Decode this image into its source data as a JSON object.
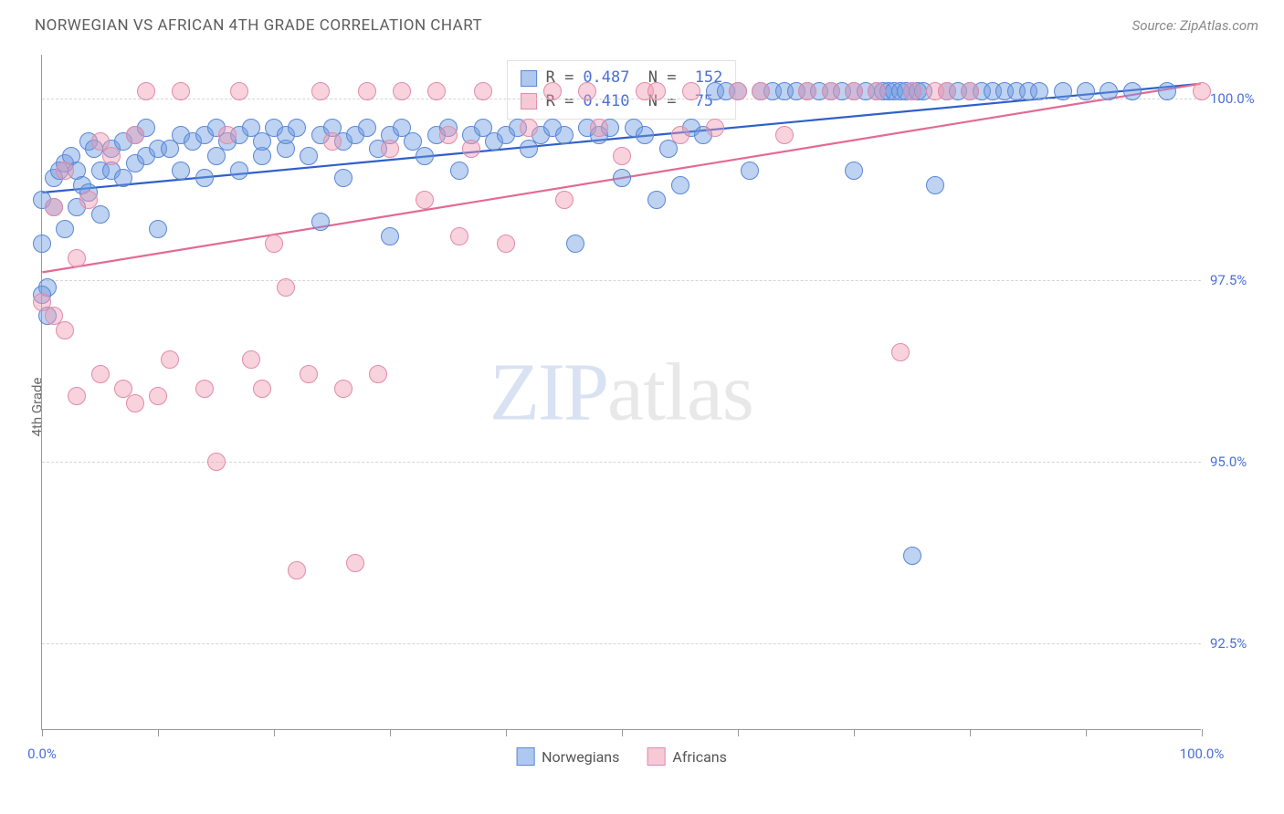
{
  "title": "NORWEGIAN VS AFRICAN 4TH GRADE CORRELATION CHART",
  "source": "Source: ZipAtlas.com",
  "y_axis_label": "4th Grade",
  "watermark": {
    "zip": "ZIP",
    "atlas": "atlas"
  },
  "chart": {
    "type": "scatter",
    "background_color": "#ffffff",
    "grid_color": "#d5d5d5",
    "axis_color": "#999999",
    "xlim": [
      0,
      100
    ],
    "ylim": [
      91.3,
      100.6
    ],
    "yticks": [
      {
        "v": 92.5,
        "label": "92.5%"
      },
      {
        "v": 95.0,
        "label": "95.0%"
      },
      {
        "v": 97.5,
        "label": "97.5%"
      },
      {
        "v": 100.0,
        "label": "100.0%"
      }
    ],
    "xticks": [
      0,
      10,
      20,
      30,
      40,
      50,
      60,
      70,
      80,
      90,
      100
    ],
    "xtick_labels": [
      {
        "v": 0,
        "label": "0.0%"
      },
      {
        "v": 100,
        "label": "100.0%"
      }
    ],
    "trend_lines": [
      {
        "name": "norwegians",
        "color": "#2f5fc9",
        "width": 2.2,
        "x1": 0,
        "y1": 98.7,
        "x2": 100,
        "y2": 100.2
      },
      {
        "name": "africans",
        "color": "#e36a92",
        "width": 2.2,
        "x1": 0,
        "y1": 97.6,
        "x2": 100,
        "y2": 100.2
      }
    ],
    "series": [
      {
        "name": "Norwegians",
        "fill": "rgba(110,155,225,0.45)",
        "stroke": "#5a87d6",
        "marker_radius": 10,
        "points": [
          [
            0,
            98.6
          ],
          [
            0,
            98.0
          ],
          [
            0.5,
            97.4
          ],
          [
            0.5,
            97.0
          ],
          [
            1,
            98.9
          ],
          [
            1,
            98.5
          ],
          [
            1.5,
            99.0
          ],
          [
            2,
            98.2
          ],
          [
            2,
            99.1
          ],
          [
            2.5,
            99.2
          ],
          [
            3,
            98.5
          ],
          [
            3,
            99.0
          ],
          [
            3.5,
            98.8
          ],
          [
            4,
            99.4
          ],
          [
            4,
            98.7
          ],
          [
            4.5,
            99.3
          ],
          [
            5,
            99.0
          ],
          [
            5,
            98.4
          ],
          [
            6,
            99.3
          ],
          [
            6,
            99.0
          ],
          [
            7,
            99.4
          ],
          [
            7,
            98.9
          ],
          [
            8,
            99.5
          ],
          [
            8,
            99.1
          ],
          [
            9,
            99.2
          ],
          [
            9,
            99.6
          ],
          [
            10,
            98.2
          ],
          [
            10,
            99.3
          ],
          [
            11,
            99.3
          ],
          [
            12,
            99.0
          ],
          [
            12,
            99.5
          ],
          [
            13,
            99.4
          ],
          [
            14,
            98.9
          ],
          [
            14,
            99.5
          ],
          [
            15,
            99.2
          ],
          [
            15,
            99.6
          ],
          [
            16,
            99.4
          ],
          [
            17,
            99.0
          ],
          [
            17,
            99.5
          ],
          [
            18,
            99.6
          ],
          [
            19,
            99.2
          ],
          [
            19,
            99.4
          ],
          [
            20,
            99.6
          ],
          [
            21,
            99.3
          ],
          [
            21,
            99.5
          ],
          [
            22,
            99.6
          ],
          [
            23,
            99.2
          ],
          [
            24,
            98.3
          ],
          [
            24,
            99.5
          ],
          [
            25,
            99.6
          ],
          [
            26,
            98.9
          ],
          [
            26,
            99.4
          ],
          [
            27,
            99.5
          ],
          [
            28,
            99.6
          ],
          [
            29,
            99.3
          ],
          [
            30,
            98.1
          ],
          [
            30,
            99.5
          ],
          [
            31,
            99.6
          ],
          [
            32,
            99.4
          ],
          [
            33,
            99.2
          ],
          [
            34,
            99.5
          ],
          [
            35,
            99.6
          ],
          [
            36,
            99.0
          ],
          [
            37,
            99.5
          ],
          [
            38,
            99.6
          ],
          [
            39,
            99.4
          ],
          [
            40,
            99.5
          ],
          [
            41,
            99.6
          ],
          [
            42,
            99.3
          ],
          [
            43,
            99.5
          ],
          [
            44,
            99.6
          ],
          [
            45,
            99.5
          ],
          [
            46,
            98.0
          ],
          [
            47,
            99.6
          ],
          [
            48,
            99.5
          ],
          [
            49,
            99.6
          ],
          [
            50,
            98.9
          ],
          [
            51,
            99.6
          ],
          [
            52,
            99.5
          ],
          [
            53,
            98.6
          ],
          [
            54,
            99.3
          ],
          [
            55,
            98.8
          ],
          [
            56,
            99.6
          ],
          [
            57,
            99.5
          ],
          [
            58,
            100.1
          ],
          [
            59,
            100.1
          ],
          [
            60,
            100.1
          ],
          [
            61,
            99.0
          ],
          [
            62,
            100.1
          ],
          [
            63,
            100.1
          ],
          [
            64,
            100.1
          ],
          [
            65,
            100.1
          ],
          [
            66,
            100.1
          ],
          [
            67,
            100.1
          ],
          [
            68,
            100.1
          ],
          [
            69,
            100.1
          ],
          [
            70,
            99.0
          ],
          [
            70,
            100.1
          ],
          [
            71,
            100.1
          ],
          [
            72,
            100.1
          ],
          [
            72.5,
            100.1
          ],
          [
            73,
            100.1
          ],
          [
            73.5,
            100.1
          ],
          [
            74,
            100.1
          ],
          [
            74.5,
            100.1
          ],
          [
            75,
            100.1
          ],
          [
            75.5,
            100.1
          ],
          [
            76,
            100.1
          ],
          [
            77,
            98.8
          ],
          [
            78,
            100.1
          ],
          [
            79,
            100.1
          ],
          [
            80,
            100.1
          ],
          [
            81,
            100.1
          ],
          [
            82,
            100.1
          ],
          [
            83,
            100.1
          ],
          [
            84,
            100.1
          ],
          [
            85,
            100.1
          ],
          [
            86,
            100.1
          ],
          [
            88,
            100.1
          ],
          [
            90,
            100.1
          ],
          [
            92,
            100.1
          ],
          [
            94,
            100.1
          ],
          [
            97,
            100.1
          ],
          [
            75,
            93.7
          ],
          [
            0,
            97.3
          ]
        ]
      },
      {
        "name": "Africans",
        "fill": "rgba(240,155,180,0.45)",
        "stroke": "#e28ba8",
        "marker_radius": 10,
        "points": [
          [
            0,
            97.2
          ],
          [
            1,
            97.0
          ],
          [
            1,
            98.5
          ],
          [
            2,
            96.8
          ],
          [
            2,
            99.0
          ],
          [
            3,
            95.9
          ],
          [
            3,
            97.8
          ],
          [
            4,
            98.6
          ],
          [
            5,
            99.4
          ],
          [
            5,
            96.2
          ],
          [
            6,
            99.2
          ],
          [
            7,
            96.0
          ],
          [
            8,
            95.8
          ],
          [
            8,
            99.5
          ],
          [
            9,
            100.1
          ],
          [
            10,
            95.9
          ],
          [
            11,
            96.4
          ],
          [
            12,
            100.1
          ],
          [
            14,
            96.0
          ],
          [
            15,
            95.0
          ],
          [
            16,
            99.5
          ],
          [
            17,
            100.1
          ],
          [
            18,
            96.4
          ],
          [
            19,
            96.0
          ],
          [
            20,
            98.0
          ],
          [
            21,
            97.4
          ],
          [
            22,
            93.5
          ],
          [
            23,
            96.2
          ],
          [
            24,
            100.1
          ],
          [
            25,
            99.4
          ],
          [
            26,
            96.0
          ],
          [
            27,
            93.6
          ],
          [
            28,
            100.1
          ],
          [
            29,
            96.2
          ],
          [
            30,
            99.3
          ],
          [
            31,
            100.1
          ],
          [
            33,
            98.6
          ],
          [
            34,
            100.1
          ],
          [
            35,
            99.5
          ],
          [
            36,
            98.1
          ],
          [
            37,
            99.3
          ],
          [
            38,
            100.1
          ],
          [
            40,
            98.0
          ],
          [
            42,
            99.6
          ],
          [
            44,
            100.1
          ],
          [
            45,
            98.6
          ],
          [
            47,
            100.1
          ],
          [
            48,
            99.6
          ],
          [
            50,
            99.2
          ],
          [
            52,
            100.1
          ],
          [
            53,
            100.1
          ],
          [
            55,
            99.5
          ],
          [
            56,
            100.1
          ],
          [
            58,
            99.6
          ],
          [
            60,
            100.1
          ],
          [
            62,
            100.1
          ],
          [
            64,
            99.5
          ],
          [
            66,
            100.1
          ],
          [
            68,
            100.1
          ],
          [
            70,
            100.1
          ],
          [
            72,
            100.1
          ],
          [
            74,
            96.5
          ],
          [
            75,
            100.1
          ],
          [
            77,
            100.1
          ],
          [
            78,
            100.1
          ],
          [
            80,
            100.1
          ],
          [
            100,
            100.1
          ]
        ]
      }
    ]
  },
  "stats": [
    {
      "swatch_fill": "rgba(110,155,225,0.55)",
      "swatch_stroke": "#5a87d6",
      "R": "0.487",
      "N": "152"
    },
    {
      "swatch_fill": "rgba(240,155,180,0.55)",
      "swatch_stroke": "#e28ba8",
      "R": "0.410",
      "N": "75"
    }
  ],
  "legend": [
    {
      "label": "Norwegians",
      "fill": "rgba(110,155,225,0.55)",
      "stroke": "#5a87d6"
    },
    {
      "label": "Africans",
      "fill": "rgba(240,155,180,0.55)",
      "stroke": "#e28ba8"
    }
  ]
}
